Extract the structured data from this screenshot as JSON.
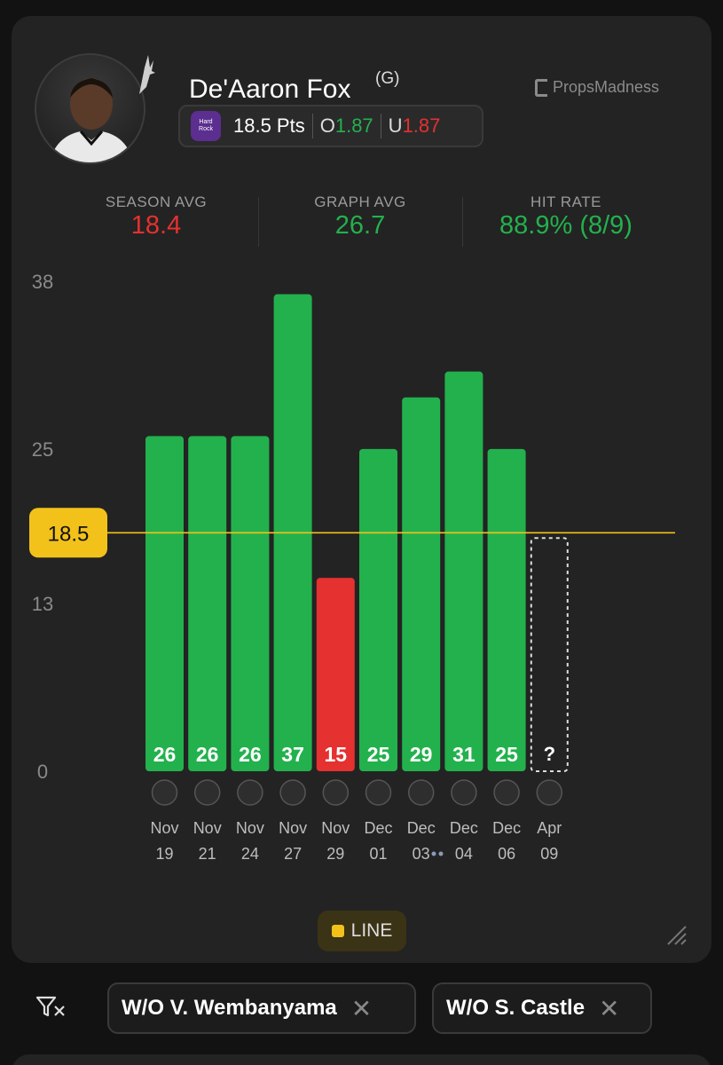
{
  "player": {
    "name": "De'Aaron Fox",
    "position": "(G)",
    "team_logo": "spurs-logo",
    "avatar": "player-headshot"
  },
  "brand": {
    "name": "PropsMadness"
  },
  "prop": {
    "book_icon": "hard-rock-bet-logo",
    "line": "18.5 Pts",
    "over_label": "O",
    "over_odds": "1.87",
    "under_label": "U",
    "under_odds": "1.87"
  },
  "stats": {
    "season_label": "SEASON AVG",
    "season_value": "18.4",
    "graph_label": "GRAPH AVG",
    "graph_value": "26.7",
    "hit_label": "HIT RATE",
    "hit_value": "88.9% (8/9)"
  },
  "colors": {
    "over": "#23b14d",
    "under": "#e5312f",
    "line": "#f2c21a",
    "card": "#232323"
  },
  "chart_data": {
    "type": "bar",
    "ylim": [
      0,
      38
    ],
    "yticks": [
      "38",
      "25",
      "13",
      "0"
    ],
    "line_value": 18.5,
    "line_label": "18.5",
    "categories": [
      {
        "month": "Nov",
        "day": "19",
        "opp": "grizzlies-logo"
      },
      {
        "month": "Nov",
        "day": "21",
        "opp": "hawks-logo"
      },
      {
        "month": "Nov",
        "day": "24",
        "opp": "suns-logo"
      },
      {
        "month": "Nov",
        "day": "27",
        "opp": "trail-blazers-logo"
      },
      {
        "month": "Nov",
        "day": "29",
        "opp": "nuggets-logo"
      },
      {
        "month": "Dec",
        "day": "01",
        "opp": "timberwolves-logo"
      },
      {
        "month": "Dec",
        "day": "03",
        "opp": "grizzlies-logo"
      },
      {
        "month": "Dec",
        "day": "04",
        "opp": "magic-logo"
      },
      {
        "month": "Dec",
        "day": "06",
        "opp": "cavaliers-logo"
      },
      {
        "month": "Apr",
        "day": "09",
        "opp": "trail-blazers-logo"
      }
    ],
    "values": [
      26,
      26,
      26,
      37,
      15,
      25,
      29,
      31,
      25,
      null
    ],
    "upcoming_label": "?"
  },
  "legend": {
    "label": "LINE"
  },
  "filters": [
    {
      "label": "W/O V. Wembanyama"
    },
    {
      "label": "W/O S. Castle"
    }
  ]
}
